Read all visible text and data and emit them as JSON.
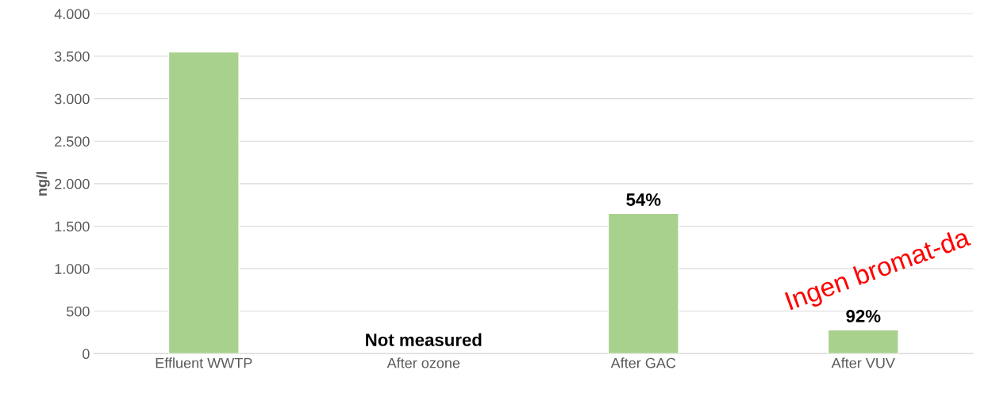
{
  "chart_data": {
    "type": "bar",
    "ylabel": "ng/l",
    "categories": [
      "Effluent WWTP",
      "After ozone",
      "After GAC",
      "After VUV"
    ],
    "values": [
      3550,
      null,
      1650,
      280
    ],
    "color": "#a9d18e",
    "ylim": [
      0,
      4000
    ],
    "yticks": [
      {
        "value": 0,
        "label": "0"
      },
      {
        "value": 500,
        "label": "500"
      },
      {
        "value": 1000,
        "label": "1.000"
      },
      {
        "value": 1500,
        "label": "1.500"
      },
      {
        "value": 2000,
        "label": "2.000"
      },
      {
        "value": 2500,
        "label": "2.500"
      },
      {
        "value": 3000,
        "label": "3.000"
      },
      {
        "value": 3500,
        "label": "3.500"
      },
      {
        "value": 4000,
        "label": "4.000"
      }
    ],
    "grid": "y",
    "annotations": [
      "Not measured",
      {
        "text": "54%",
        "x": "After GAC",
        "y": 1650
      },
      {
        "text": "92%",
        "x": "After VUV",
        "y": 280
      },
      "Ingen bromat-da"
    ]
  }
}
